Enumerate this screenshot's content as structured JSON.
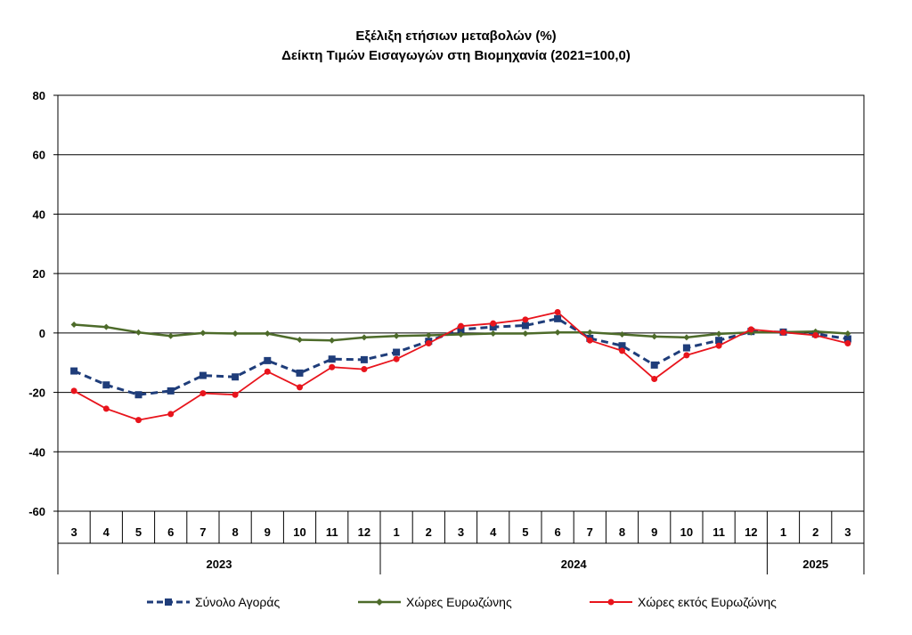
{
  "title": {
    "line1": "Εξέλιξη ετήσιων μεταβολών (%)",
    "line2": "Δείκτη Τιμών Εισαγωγών στη Βιομηχανία (2021=100,0)"
  },
  "chart_data": {
    "type": "line",
    "title": "Εξέλιξη ετήσιων μεταβολών (%) Δείκτη Τιμών Εισαγωγών στη Βιομηχανία (2021=100,0)",
    "ylim": [
      -60,
      80
    ],
    "yticks": [
      80,
      60,
      40,
      20,
      0,
      -20,
      -40,
      -60
    ],
    "grid": true,
    "legend_position": "bottom",
    "categories": [
      "3",
      "4",
      "5",
      "6",
      "7",
      "8",
      "9",
      "10",
      "11",
      "12",
      "1",
      "2",
      "3",
      "4",
      "5",
      "6",
      "7",
      "8",
      "9",
      "10",
      "11",
      "12",
      "1",
      "2",
      "3"
    ],
    "year_groups": [
      {
        "label": "2023",
        "start": 0,
        "end": 9
      },
      {
        "label": "2024",
        "start": 10,
        "end": 21
      },
      {
        "label": "2025",
        "start": 22,
        "end": 24
      }
    ],
    "series": [
      {
        "name": "Σύνολο Αγοράς",
        "color": "#1f3d7a",
        "style": "dashed-square",
        "values": [
          -12.8,
          -17.5,
          -20.8,
          -19.5,
          -14.3,
          -14.8,
          -9.3,
          -13.5,
          -8.8,
          -9.0,
          -6.5,
          -2.8,
          1.2,
          2.0,
          2.5,
          4.8,
          -1.8,
          -4.3,
          -10.8,
          -5.0,
          -2.5,
          0.5,
          0.3,
          -0.3,
          -2.0
        ]
      },
      {
        "name": "Χώρες Ευρωζώνης",
        "color": "#4d6b2a",
        "style": "solid-diamond",
        "values": [
          2.8,
          2.0,
          0.2,
          -1.0,
          0.0,
          -0.2,
          -0.2,
          -2.3,
          -2.5,
          -1.5,
          -1.0,
          -0.8,
          -0.5,
          -0.2,
          -0.2,
          0.2,
          0.2,
          -0.5,
          -1.2,
          -1.5,
          -0.3,
          0.2,
          0.3,
          0.5,
          -0.2
        ]
      },
      {
        "name": "Χώρες εκτός Ευρωζώνης",
        "color": "#e8141c",
        "style": "solid-circle",
        "values": [
          -19.5,
          -25.5,
          -29.3,
          -27.3,
          -20.3,
          -20.8,
          -13.0,
          -18.3,
          -11.5,
          -12.2,
          -8.8,
          -3.5,
          2.3,
          3.2,
          4.5,
          7.0,
          -2.5,
          -6.0,
          -15.5,
          -7.5,
          -4.3,
          1.2,
          0.2,
          -0.8,
          -3.5
        ]
      }
    ]
  }
}
